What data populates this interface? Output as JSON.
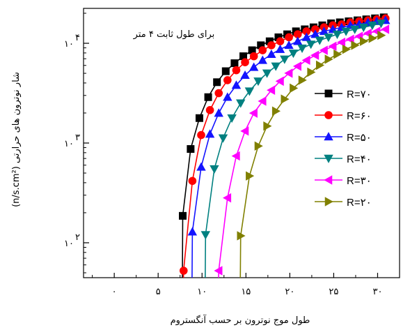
{
  "chart_data": {
    "type": "line",
    "title": "",
    "annotation": "برای طول ثابت ۴ متر",
    "xlabel": "طول موج نوترون بر حسب آنگستروم",
    "ylabel": "شار نوترون های حرارتی (n/s.cm²)",
    "xlim": [
      -3.5,
      32.5
    ],
    "ylim_log10": [
      1.65,
      4.35
    ],
    "y_scale": "log",
    "grid": false,
    "legend_position": "right",
    "x_ticks": [
      {
        "value": 0,
        "label": "۰"
      },
      {
        "value": 5,
        "label": "۵"
      },
      {
        "value": 10,
        "label": "۱۰"
      },
      {
        "value": 15,
        "label": "۱۵"
      },
      {
        "value": 20,
        "label": "۲۰"
      },
      {
        "value": 25,
        "label": "۲۵"
      },
      {
        "value": 30,
        "label": "۳۰"
      }
    ],
    "y_ticks": [
      {
        "log": 2,
        "base": "۱۰",
        "exp": "۲"
      },
      {
        "log": 3,
        "base": "۱۰",
        "exp": "۳"
      },
      {
        "log": 4,
        "base": "۱۰",
        "exp": "۴"
      }
    ],
    "series": [
      {
        "name": "R=۷۰",
        "color": "#000000",
        "marker": "square",
        "x": [
          7.8,
          8.7,
          9.7,
          10.7,
          11.7,
          12.7,
          13.7,
          14.7,
          15.7,
          16.7,
          17.7,
          18.7,
          19.7,
          20.7,
          21.7,
          22.7,
          23.7,
          24.7,
          25.7,
          26.7,
          27.7,
          28.7,
          29.7,
          30.7
        ],
        "y_log10": [
          2.27,
          2.94,
          3.25,
          3.46,
          3.61,
          3.72,
          3.8,
          3.87,
          3.93,
          3.98,
          4.02,
          4.06,
          4.09,
          4.12,
          4.14,
          4.16,
          4.18,
          4.2,
          4.21,
          4.22,
          4.23,
          4.24,
          4.25,
          4.26
        ]
      },
      {
        "name": "R=۶۰",
        "color": "#ff0000",
        "marker": "circle",
        "x": [
          7.9,
          8.9,
          9.9,
          10.9,
          11.9,
          12.9,
          13.9,
          14.9,
          15.9,
          16.9,
          17.9,
          18.9,
          19.9,
          20.9,
          21.9,
          22.9,
          23.9,
          24.9,
          25.9,
          26.9,
          27.9,
          28.9,
          29.9,
          30.9
        ],
        "y_log10": [
          1.72,
          2.62,
          3.08,
          3.33,
          3.5,
          3.63,
          3.73,
          3.81,
          3.87,
          3.93,
          3.98,
          4.02,
          4.06,
          4.09,
          4.12,
          4.14,
          4.16,
          4.18,
          4.19,
          4.21,
          4.22,
          4.23,
          4.24,
          4.25
        ]
      },
      {
        "name": "R=۵۰",
        "color": "#1414ff",
        "marker": "triangle-up",
        "x": [
          8.9,
          9.9,
          10.9,
          11.9,
          12.9,
          13.9,
          14.9,
          15.9,
          16.9,
          17.9,
          18.9,
          19.9,
          20.9,
          21.9,
          22.9,
          23.9,
          24.9,
          25.9,
          26.9,
          27.9,
          28.9,
          29.9,
          30.9
        ],
        "y_log10": [
          2.11,
          2.76,
          3.09,
          3.3,
          3.46,
          3.58,
          3.68,
          3.76,
          3.83,
          3.89,
          3.94,
          3.98,
          4.02,
          4.06,
          4.09,
          4.12,
          4.14,
          4.16,
          4.18,
          4.19,
          4.21,
          4.22,
          4.23
        ]
      },
      {
        "name": "R=۴۰",
        "color": "#008080",
        "marker": "triangle-down",
        "x": [
          10.4,
          11.4,
          12.4,
          13.4,
          14.4,
          15.4,
          16.4,
          17.4,
          18.4,
          19.4,
          20.4,
          21.4,
          22.4,
          23.4,
          24.4,
          25.4,
          26.4,
          27.4,
          28.4,
          29.4,
          30.4
        ],
        "y_log10": [
          2.08,
          2.74,
          3.05,
          3.25,
          3.4,
          3.52,
          3.62,
          3.7,
          3.77,
          3.84,
          3.9,
          3.95,
          3.99,
          4.03,
          4.06,
          4.09,
          4.12,
          4.14,
          4.16,
          4.18,
          4.2
        ]
      },
      {
        "name": "R=۳۰",
        "color": "#ff00ff",
        "marker": "triangle-left",
        "x": [
          11.9,
          12.9,
          13.9,
          14.9,
          15.9,
          16.9,
          17.9,
          18.9,
          19.9,
          20.9,
          21.9,
          22.9,
          23.9,
          24.9,
          25.9,
          26.9,
          27.9,
          28.9,
          29.9,
          30.9
        ],
        "y_log10": [
          1.72,
          2.45,
          2.87,
          3.12,
          3.3,
          3.42,
          3.53,
          3.62,
          3.7,
          3.77,
          3.83,
          3.88,
          3.93,
          3.97,
          4.01,
          4.04,
          4.07,
          4.1,
          4.12,
          4.14
        ]
      },
      {
        "name": "R=۲۰",
        "color": "#808000",
        "marker": "triangle-right",
        "x": [
          14.4,
          15.4,
          16.4,
          17.4,
          18.4,
          19.4,
          20.4,
          21.4,
          22.4,
          23.4,
          24.4,
          25.4,
          26.4,
          27.4,
          28.4,
          29.4,
          30.4
        ],
        "y_log10": [
          2.07,
          2.67,
          2.97,
          3.17,
          3.32,
          3.44,
          3.55,
          3.63,
          3.71,
          3.78,
          3.84,
          3.89,
          3.94,
          3.98,
          4.02,
          4.05,
          4.08
        ]
      }
    ]
  }
}
